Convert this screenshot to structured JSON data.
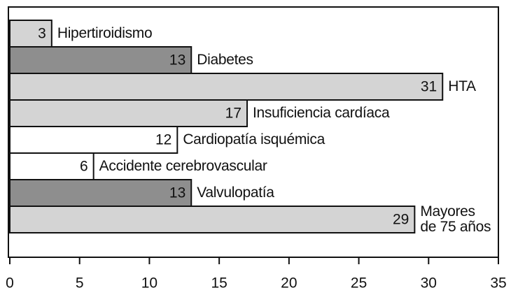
{
  "chart_data": {
    "type": "bar",
    "orientation": "horizontal",
    "categories": [
      "Hipertiroidismo",
      "Diabetes",
      "HTA",
      "Insuficiencia cardíaca",
      "Cardiopatía isquémica",
      "Accidente cerebrovascular",
      "Valvulopatía",
      "Mayores\nde 75 años"
    ],
    "values": [
      3,
      13,
      31,
      17,
      12,
      6,
      13,
      29
    ],
    "colors": [
      "#d4d4d4",
      "#8e8e8e",
      "#d4d4d4",
      "#d4d4d4",
      "#ffffff",
      "#ffffff",
      "#8e8e8e",
      "#d4d4d4"
    ],
    "xlim": [
      0,
      35
    ],
    "xticks": [
      0,
      5,
      10,
      15,
      20,
      25,
      30,
      35
    ]
  }
}
